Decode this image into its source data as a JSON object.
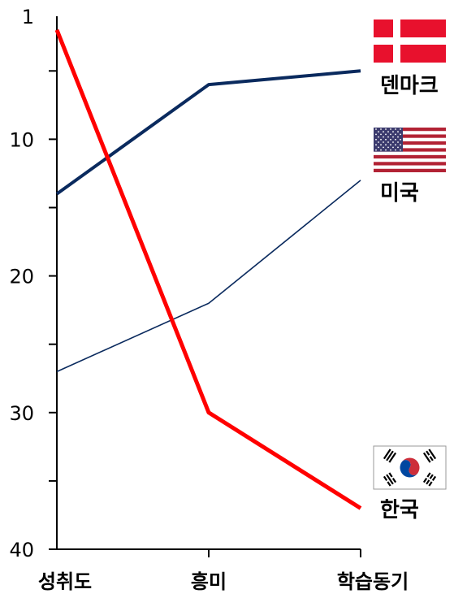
{
  "chart_data": {
    "type": "line",
    "categories": [
      "성취도",
      "흥미",
      "학습동기"
    ],
    "y_ticks": [
      1,
      10,
      20,
      30,
      40
    ],
    "ylim": [
      1,
      40
    ],
    "y_inverted": true,
    "grid": false,
    "legend": "labels at right end of lines with national flags",
    "series": [
      {
        "name": "덴마크",
        "values": [
          14,
          6,
          5
        ],
        "color": "#0a2a5e",
        "weight": "bold",
        "flag": "denmark-flag"
      },
      {
        "name": "미국",
        "values": [
          27,
          22,
          13
        ],
        "color": "#0a2a5e",
        "weight": "thin",
        "flag": "usa-flag"
      },
      {
        "name": "한국",
        "values": [
          2,
          30,
          37
        ],
        "color": "#ff0000",
        "weight": "bold",
        "flag": "korea-flag"
      }
    ]
  }
}
